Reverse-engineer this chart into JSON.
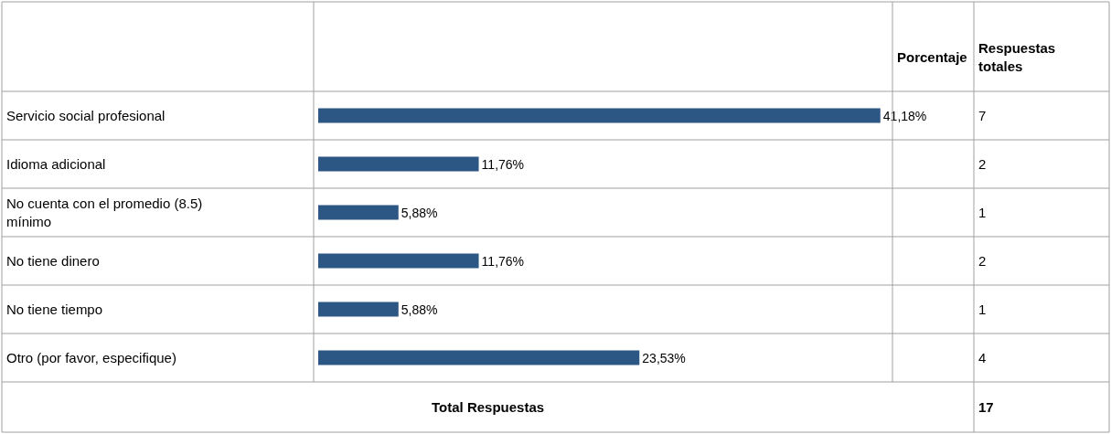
{
  "chart_data": {
    "type": "bar",
    "orientation": "horizontal",
    "categories": [
      "Servicio social profesional",
      "Idioma adicional",
      "No cuenta con el promedio (8.5) mínimo",
      "No tiene dinero",
      "No tiene tiempo",
      "Otro (por favor, especifique)"
    ],
    "values": [
      41.18,
      11.76,
      5.88,
      11.76,
      5.88,
      23.53
    ],
    "value_labels": [
      "41,18%",
      "11,76%",
      "5,88%",
      "11,76%",
      "5,88%",
      "23,53%"
    ],
    "color": "#2c5684",
    "xlim": [
      0,
      42
    ],
    "tick_labels": false,
    "annotations": [
      "Porcentaje",
      "Respuestas totales",
      "7",
      "2",
      "1",
      "2",
      "1",
      "4",
      "Total Respuestas",
      "17"
    ]
  }
}
